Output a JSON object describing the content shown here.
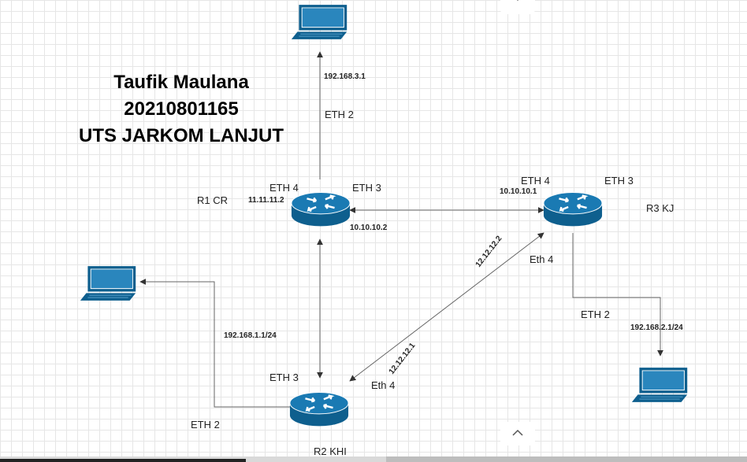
{
  "title": {
    "line1": "Taufik Maulana",
    "line2": "20210801165",
    "line3": "UTS JARKOM LANJUT"
  },
  "routers": {
    "r1": {
      "name": "R1 CR"
    },
    "r2": {
      "name": "R2 KHI"
    },
    "r3": {
      "name": "R3 KJ"
    }
  },
  "ports": {
    "r1_eth4": "ETH 4",
    "r1_eth3": "ETH 3",
    "r1_eth2": "ETH 2",
    "r3_eth4": "ETH 4",
    "r3_eth3": "ETH 3",
    "r3_eth4_b": "Eth 4",
    "r3_eth2": "ETH 2",
    "r2_eth3": "ETH 3",
    "r2_eth4": "Eth 4",
    "r2_eth2": "ETH 2"
  },
  "ips": {
    "r1_laptop": "192.168.3.1",
    "r1_eth4": "11.11.11.2",
    "r1_eth3": "10.10.10.2",
    "r3_eth4": "10.10.10.1",
    "r3_r2_link": "12.12.12.2",
    "r2_r3_link": "12.12.12.1",
    "r2_laptop": "192.168.1.1/24",
    "r3_laptop": "192.168.2.1/24"
  },
  "icons": {
    "router": "router-icon",
    "laptop": "laptop-icon",
    "nav_up": "chevron-up-icon",
    "nav_down": "chevron-down-icon"
  },
  "colors": {
    "router_fill": "#0e5f8e",
    "router_top": "#1a7ab3",
    "laptop_fill": "#0e5f8e",
    "link": "#666666"
  }
}
